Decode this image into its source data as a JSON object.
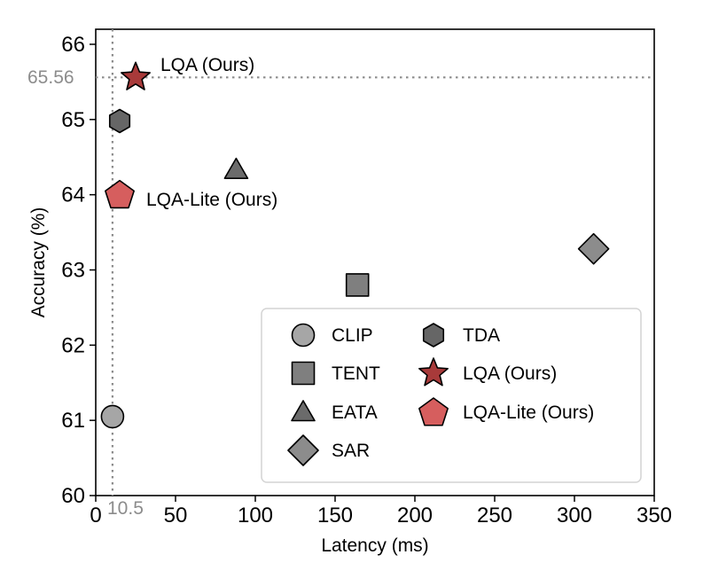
{
  "chart_data": {
    "type": "scatter",
    "xlabel": "Latency (ms)",
    "ylabel": "Accuracy (%)",
    "xlim": [
      0,
      350
    ],
    "ylim": [
      60,
      66.2
    ],
    "xticks": [
      0,
      50,
      100,
      150,
      200,
      250,
      300,
      350
    ],
    "yticks": [
      60,
      61,
      62,
      63,
      64,
      65,
      66
    ],
    "reference_lines": {
      "x": 10.5,
      "x_label": "10.5",
      "y": 65.56,
      "y_label": "65.56"
    },
    "series": [
      {
        "name": "CLIP",
        "x": 10.5,
        "y": 61.05,
        "marker": "circle",
        "color": "#a6a6a6"
      },
      {
        "name": "TENT",
        "x": 164,
        "y": 62.8,
        "marker": "square",
        "color": "#7f7f7f"
      },
      {
        "name": "EATA",
        "x": 88,
        "y": 64.33,
        "marker": "triangle",
        "color": "#6b6b6b"
      },
      {
        "name": "SAR",
        "x": 312,
        "y": 63.28,
        "marker": "diamond",
        "color": "#8c8c8c"
      },
      {
        "name": "TDA",
        "x": 15,
        "y": 64.98,
        "marker": "hexagon",
        "color": "#666666"
      },
      {
        "name": "LQA (Ours)",
        "x": 25,
        "y": 65.56,
        "marker": "star",
        "color": "#a83a3a"
      },
      {
        "name": "LQA-Lite (Ours)",
        "x": 15,
        "y": 64.0,
        "marker": "pentagon",
        "color": "#d65e5e"
      }
    ],
    "annotations": [
      {
        "series": "LQA (Ours)",
        "text": "LQA (Ours)"
      },
      {
        "series": "LQA-Lite (Ours)",
        "text": "LQA-Lite (Ours)"
      }
    ],
    "legend": {
      "location": "lower-right",
      "columns": [
        [
          "CLIP",
          "TENT",
          "EATA",
          "SAR"
        ],
        [
          "TDA",
          "LQA (Ours)",
          "LQA-Lite (Ours)"
        ]
      ]
    }
  }
}
